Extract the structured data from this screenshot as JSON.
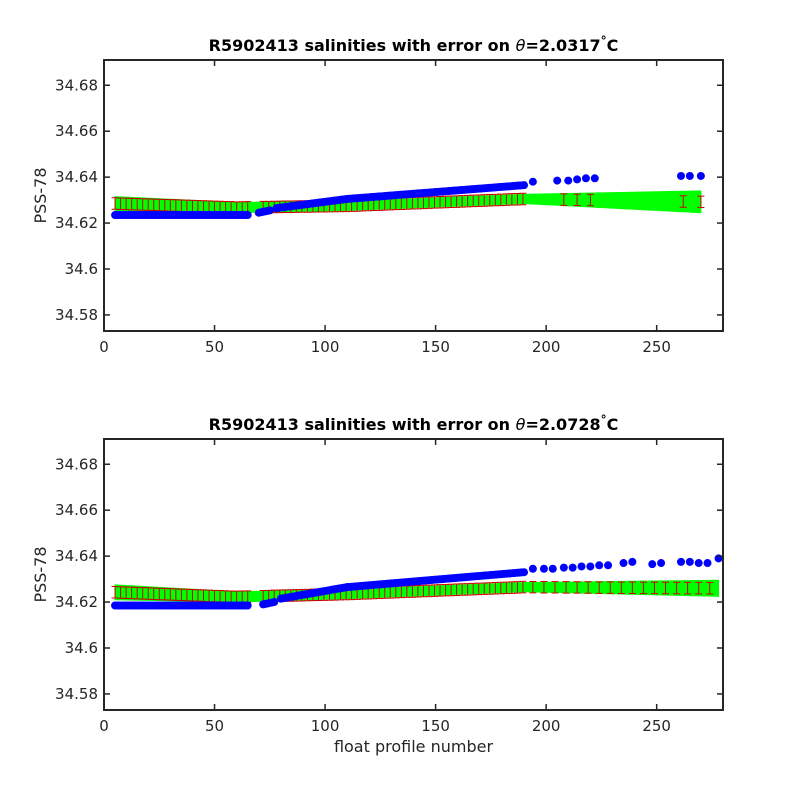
{
  "colors": {
    "measured": "#0000ff",
    "mapped_band": "#00ff00",
    "error_bar": "#cc0000",
    "axes": "#262626"
  },
  "chart_data": [
    {
      "type": "scatter",
      "title": {
        "prefix": "R5902413 salinities with error on ",
        "theta": "θ",
        "value": "=2.0317",
        "degree": "°",
        "unit": "C"
      },
      "xlabel": "",
      "ylabel": "PSS-78",
      "xlim": [
        0,
        280
      ],
      "ylim": [
        34.573,
        34.691
      ],
      "xticks": [
        0,
        50,
        100,
        150,
        200,
        250
      ],
      "xtick_labels": [
        "0",
        "50",
        "100",
        "150",
        "200",
        "250"
      ],
      "yticks": [
        34.58,
        34.6,
        34.62,
        34.64,
        34.66,
        34.68
      ],
      "ytick_labels": [
        "34.58",
        "34.6",
        "34.62",
        "34.64",
        "34.66",
        "34.68"
      ],
      "grid": false,
      "measured": {
        "segments": [
          {
            "x0": 5,
            "x1": 65,
            "y0": 34.6235,
            "y1": 34.6235
          },
          {
            "x0": 70,
            "x1": 75,
            "y0": 34.6245,
            "y1": 34.6255
          },
          {
            "x0": 78,
            "x1": 110,
            "y0": 34.6265,
            "y1": 34.6305
          },
          {
            "x0": 110,
            "x1": 190,
            "y0": 34.6305,
            "y1": 34.6365
          }
        ],
        "extra_points": [
          {
            "x": 194,
            "y": 34.638
          },
          {
            "x": 205,
            "y": 34.6385
          },
          {
            "x": 210,
            "y": 34.6385
          },
          {
            "x": 214,
            "y": 34.639
          },
          {
            "x": 218,
            "y": 34.6395
          },
          {
            "x": 222,
            "y": 34.6395
          },
          {
            "x": 261,
            "y": 34.6405
          },
          {
            "x": 265,
            "y": 34.6405
          },
          {
            "x": 270,
            "y": 34.6405
          }
        ]
      },
      "mapped": {
        "x0": 5,
        "x1": 270,
        "upper": [
          [
            5,
            34.6315
          ],
          [
            60,
            34.629
          ],
          [
            110,
            34.6295
          ],
          [
            190,
            34.6325
          ],
          [
            270,
            34.634
          ]
        ],
        "lower": [
          [
            5,
            34.6255
          ],
          [
            60,
            34.6245
          ],
          [
            110,
            34.6255
          ],
          [
            190,
            34.6285
          ],
          [
            270,
            34.6245
          ]
        ],
        "error_halfwidth": 0.0025,
        "error_groups": [
          {
            "x0": 5,
            "x1": 65,
            "step": 2.5
          },
          {
            "x0": 72,
            "x1": 190,
            "step": 2.5
          },
          {
            "x0": 208,
            "x1": 220,
            "step": 6
          },
          {
            "x0": 262,
            "x1": 270,
            "step": 8
          }
        ]
      }
    },
    {
      "type": "scatter",
      "title": {
        "prefix": "R5902413 salinities with error on ",
        "theta": "θ",
        "value": "=2.0728",
        "degree": "°",
        "unit": "C"
      },
      "xlabel": "float profile number",
      "ylabel": "PSS-78",
      "xlim": [
        0,
        280
      ],
      "ylim": [
        34.573,
        34.691
      ],
      "xticks": [
        0,
        50,
        100,
        150,
        200,
        250
      ],
      "xtick_labels": [
        "0",
        "50",
        "100",
        "150",
        "200",
        "250"
      ],
      "yticks": [
        34.58,
        34.6,
        34.62,
        34.64,
        34.66,
        34.68
      ],
      "ytick_labels": [
        "34.58",
        "34.6",
        "34.62",
        "34.64",
        "34.66",
        "34.68"
      ],
      "grid": false,
      "measured": {
        "segments": [
          {
            "x0": 5,
            "x1": 65,
            "y0": 34.6185,
            "y1": 34.6185
          },
          {
            "x0": 72,
            "x1": 77,
            "y0": 34.619,
            "y1": 34.62
          },
          {
            "x0": 80,
            "x1": 110,
            "y0": 34.6215,
            "y1": 34.6265
          },
          {
            "x0": 110,
            "x1": 190,
            "y0": 34.6265,
            "y1": 34.633
          }
        ],
        "extra_points": [
          {
            "x": 194,
            "y": 34.6345
          },
          {
            "x": 199,
            "y": 34.6345
          },
          {
            "x": 203,
            "y": 34.6345
          },
          {
            "x": 208,
            "y": 34.635
          },
          {
            "x": 212,
            "y": 34.635
          },
          {
            "x": 216,
            "y": 34.6355
          },
          {
            "x": 220,
            "y": 34.6355
          },
          {
            "x": 224,
            "y": 34.636
          },
          {
            "x": 228,
            "y": 34.636
          },
          {
            "x": 235,
            "y": 34.637
          },
          {
            "x": 239,
            "y": 34.6375
          },
          {
            "x": 248,
            "y": 34.6365
          },
          {
            "x": 252,
            "y": 34.637
          },
          {
            "x": 261,
            "y": 34.6375
          },
          {
            "x": 265,
            "y": 34.6375
          },
          {
            "x": 269,
            "y": 34.637
          },
          {
            "x": 273,
            "y": 34.637
          },
          {
            "x": 278,
            "y": 34.639
          }
        ]
      },
      "mapped": {
        "x0": 5,
        "x1": 278,
        "upper": [
          [
            5,
            34.6275
          ],
          [
            60,
            34.6245
          ],
          [
            110,
            34.6255
          ],
          [
            190,
            34.6285
          ],
          [
            278,
            34.6295
          ]
        ],
        "lower": [
          [
            5,
            34.621
          ],
          [
            60,
            34.62
          ],
          [
            110,
            34.6215
          ],
          [
            190,
            34.6245
          ],
          [
            278,
            34.6225
          ]
        ],
        "error_halfwidth": 0.0025,
        "error_groups": [
          {
            "x0": 5,
            "x1": 65,
            "step": 2.5
          },
          {
            "x0": 72,
            "x1": 190,
            "step": 2.5
          },
          {
            "x0": 194,
            "x1": 278,
            "step": 5
          }
        ]
      }
    }
  ]
}
